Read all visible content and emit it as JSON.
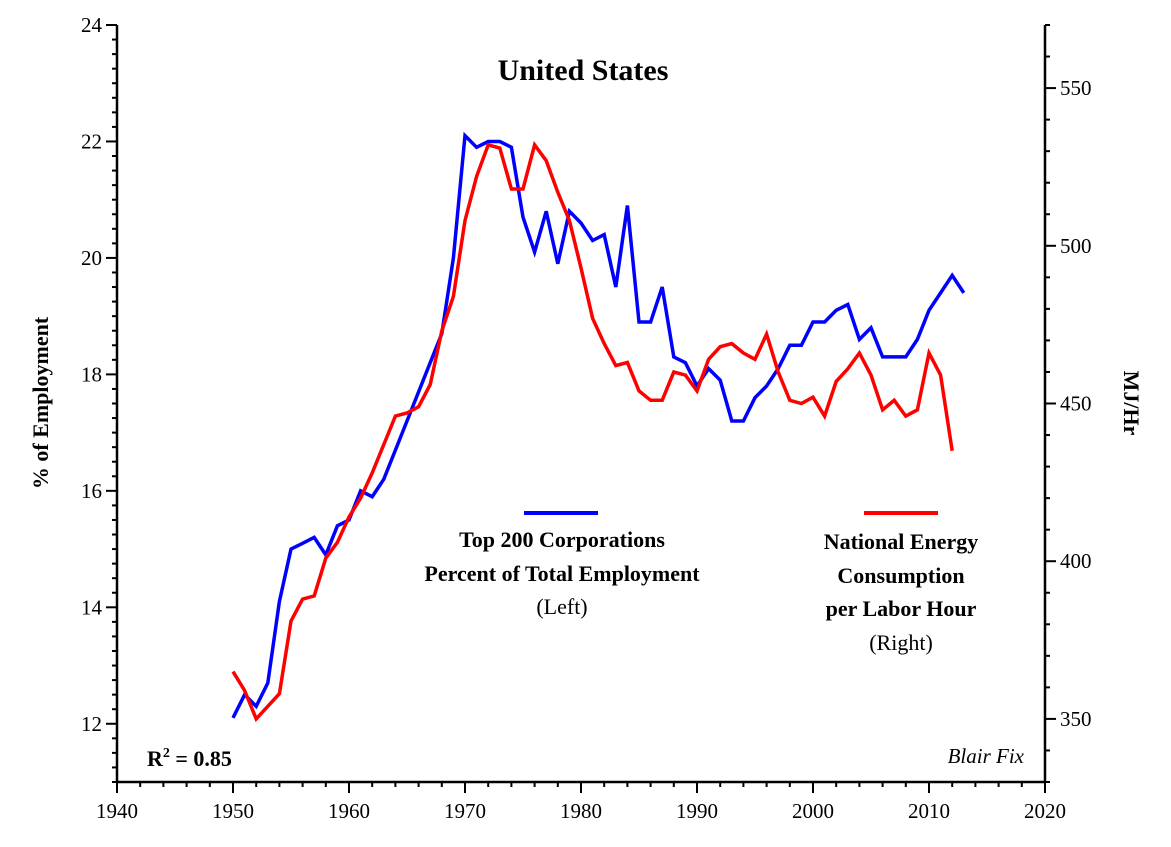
{
  "chart_data": {
    "type": "line",
    "title": "United States",
    "x_axis": {
      "range": [
        1940,
        2020
      ],
      "ticks": [
        1940,
        1950,
        1960,
        1970,
        1980,
        1990,
        2000,
        2010,
        2020
      ]
    },
    "y_left": {
      "label": "% of Employment",
      "range": [
        11,
        24
      ],
      "ticks": [
        12,
        14,
        16,
        18,
        20,
        22,
        24
      ]
    },
    "y_right": {
      "label": "MJ/Hr",
      "range": [
        330,
        570
      ],
      "ticks": [
        350,
        400,
        450,
        500,
        550
      ]
    },
    "grid": false,
    "series": [
      {
        "name": "Top 200 Corporations Percent of Total Employment",
        "axis": "left",
        "color": "#0000ff",
        "legend": {
          "line1": "Top 200 Corporations",
          "line2": "Percent of Total Employment",
          "line3": "(Left)"
        },
        "points": [
          [
            1950,
            12.1
          ],
          [
            1951,
            12.5
          ],
          [
            1952,
            12.3
          ],
          [
            1953,
            12.7
          ],
          [
            1954,
            14.1
          ],
          [
            1955,
            15.0
          ],
          [
            1956,
            15.1
          ],
          [
            1957,
            15.2
          ],
          [
            1958,
            14.9
          ],
          [
            1959,
            15.4
          ],
          [
            1960,
            15.5
          ],
          [
            1961,
            16.0
          ],
          [
            1962,
            15.9
          ],
          [
            1963,
            16.2
          ],
          [
            1964,
            16.7
          ],
          [
            1965,
            17.2
          ],
          [
            1966,
            17.7
          ],
          [
            1967,
            18.2
          ],
          [
            1968,
            18.7
          ],
          [
            1969,
            20.0
          ],
          [
            1970,
            22.1
          ],
          [
            1971,
            21.9
          ],
          [
            1972,
            22.0
          ],
          [
            1973,
            22.0
          ],
          [
            1974,
            21.9
          ],
          [
            1975,
            20.7
          ],
          [
            1976,
            20.1
          ],
          [
            1977,
            20.8
          ],
          [
            1978,
            19.9
          ],
          [
            1979,
            20.8
          ],
          [
            1980,
            20.6
          ],
          [
            1981,
            20.3
          ],
          [
            1982,
            20.4
          ],
          [
            1983,
            19.5
          ],
          [
            1984,
            20.9
          ],
          [
            1985,
            18.9
          ],
          [
            1986,
            18.9
          ],
          [
            1987,
            19.5
          ],
          [
            1988,
            18.3
          ],
          [
            1989,
            18.2
          ],
          [
            1990,
            17.8
          ],
          [
            1991,
            18.1
          ],
          [
            1992,
            17.9
          ],
          [
            1993,
            17.2
          ],
          [
            1994,
            17.2
          ],
          [
            1995,
            17.6
          ],
          [
            1996,
            17.8
          ],
          [
            1997,
            18.1
          ],
          [
            1998,
            18.5
          ],
          [
            1999,
            18.5
          ],
          [
            2000,
            18.9
          ],
          [
            2001,
            18.9
          ],
          [
            2002,
            19.1
          ],
          [
            2003,
            19.2
          ],
          [
            2004,
            18.6
          ],
          [
            2005,
            18.8
          ],
          [
            2006,
            18.3
          ],
          [
            2007,
            18.3
          ],
          [
            2008,
            18.3
          ],
          [
            2009,
            18.6
          ],
          [
            2010,
            19.1
          ],
          [
            2011,
            19.4
          ],
          [
            2012,
            19.7
          ],
          [
            2013,
            19.4
          ]
        ]
      },
      {
        "name": "National Energy Consumption per Labor Hour",
        "axis": "right",
        "color": "#ff0000",
        "legend": {
          "line1": "National Energy",
          "line2": "Consumption",
          "line3": "per Labor Hour",
          "line4": "(Right)"
        },
        "points": [
          [
            1950,
            365
          ],
          [
            1951,
            359
          ],
          [
            1952,
            350
          ],
          [
            1953,
            354
          ],
          [
            1954,
            358
          ],
          [
            1955,
            381
          ],
          [
            1956,
            388
          ],
          [
            1957,
            389
          ],
          [
            1958,
            401
          ],
          [
            1959,
            406
          ],
          [
            1960,
            414
          ],
          [
            1961,
            420
          ],
          [
            1962,
            428
          ],
          [
            1963,
            437
          ],
          [
            1964,
            446
          ],
          [
            1965,
            447
          ],
          [
            1966,
            449
          ],
          [
            1967,
            456
          ],
          [
            1968,
            473
          ],
          [
            1969,
            484
          ],
          [
            1970,
            508
          ],
          [
            1971,
            522
          ],
          [
            1972,
            532
          ],
          [
            1973,
            531
          ],
          [
            1974,
            518
          ],
          [
            1975,
            518
          ],
          [
            1976,
            532
          ],
          [
            1977,
            527
          ],
          [
            1978,
            517
          ],
          [
            1979,
            508
          ],
          [
            1980,
            493
          ],
          [
            1981,
            477
          ],
          [
            1982,
            469
          ],
          [
            1983,
            462
          ],
          [
            1984,
            463
          ],
          [
            1985,
            454
          ],
          [
            1986,
            451
          ],
          [
            1987,
            451
          ],
          [
            1988,
            460
          ],
          [
            1989,
            459
          ],
          [
            1990,
            454
          ],
          [
            1991,
            464
          ],
          [
            1992,
            468
          ],
          [
            1993,
            469
          ],
          [
            1994,
            466
          ],
          [
            1995,
            464
          ],
          [
            1996,
            472
          ],
          [
            1997,
            460
          ],
          [
            1998,
            451
          ],
          [
            1999,
            450
          ],
          [
            2000,
            452
          ],
          [
            2001,
            446
          ],
          [
            2002,
            457
          ],
          [
            2003,
            461
          ],
          [
            2004,
            466
          ],
          [
            2005,
            459
          ],
          [
            2006,
            448
          ],
          [
            2007,
            451
          ],
          [
            2008,
            446
          ],
          [
            2009,
            448
          ],
          [
            2010,
            466
          ],
          [
            2011,
            459
          ],
          [
            2012,
            435
          ]
        ]
      }
    ],
    "annotations": {
      "r2_main": "R",
      "r2_sup": "2",
      "r2_rest": " = 0.85",
      "credit": "Blair Fix"
    }
  }
}
